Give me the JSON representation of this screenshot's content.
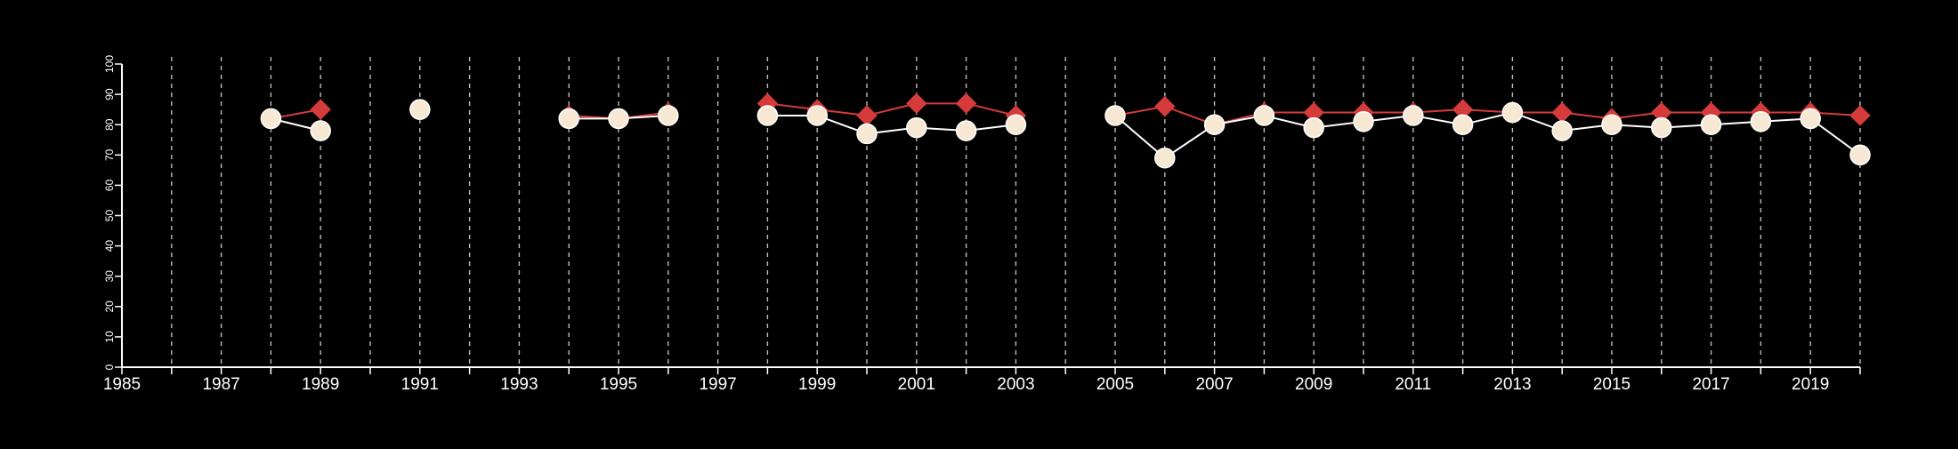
{
  "chart_data": {
    "type": "line",
    "title": "",
    "xlabel": "",
    "ylabel": "",
    "xlim": [
      1985,
      2020
    ],
    "ylim": [
      0,
      100
    ],
    "x_ticks": [
      1985,
      1986,
      1987,
      1988,
      1989,
      1990,
      1991,
      1992,
      1993,
      1994,
      1995,
      1996,
      1997,
      1998,
      1999,
      2000,
      2001,
      2002,
      2003,
      2004,
      2005,
      2006,
      2007,
      2008,
      2009,
      2010,
      2011,
      2012,
      2013,
      2014,
      2015,
      2016,
      2017,
      2018,
      2019,
      2020
    ],
    "x_tick_labels": [
      "1985",
      "",
      "1987",
      "",
      "1989",
      "",
      "1991",
      "",
      "1993",
      "",
      "1995",
      "",
      "1997",
      "",
      "1999",
      "",
      "2001",
      "",
      "2003",
      "",
      "2005",
      "",
      "2007",
      "",
      "2009",
      "",
      "2011",
      "",
      "2013",
      "",
      "2015",
      "",
      "2017",
      "",
      "2019",
      ""
    ],
    "y_ticks": [
      0,
      10,
      20,
      30,
      40,
      50,
      60,
      70,
      80,
      90,
      100
    ],
    "y_tick_labels": [
      "0",
      "10",
      "20",
      "30",
      "40",
      "50",
      "60",
      "70",
      "80",
      "90",
      "100"
    ],
    "grid": "vertical-dashed",
    "colors": {
      "background": "#000000",
      "axis": "#ffffff",
      "grid": "#bbbbbb",
      "series_red": "#d63b3b",
      "series_cream": "#f7e8d4",
      "series_cream_line": "#ffffff"
    },
    "series": [
      {
        "name": "",
        "marker": "diamond",
        "color": "#d63b3b",
        "segments": [
          [
            [
              1988,
              82
            ],
            [
              1989,
              85
            ]
          ],
          [
            [
              1991,
              85
            ]
          ],
          [
            [
              1994,
              83
            ],
            [
              1995,
              82
            ],
            [
              1996,
              84
            ]
          ],
          [
            [
              1998,
              87
            ],
            [
              1999,
              85
            ],
            [
              2000,
              83
            ],
            [
              2001,
              87
            ],
            [
              2002,
              87
            ],
            [
              2003,
              83
            ]
          ],
          [
            [
              2005,
              83
            ],
            [
              2006,
              86
            ],
            [
              2007,
              80
            ],
            [
              2008,
              84
            ],
            [
              2009,
              84
            ],
            [
              2010,
              84
            ],
            [
              2011,
              84
            ],
            [
              2012,
              85
            ],
            [
              2013,
              84
            ],
            [
              2014,
              84
            ],
            [
              2015,
              82
            ],
            [
              2016,
              84
            ],
            [
              2017,
              84
            ],
            [
              2018,
              84
            ],
            [
              2019,
              84
            ],
            [
              2020,
              83
            ]
          ]
        ]
      },
      {
        "name": "",
        "marker": "circle",
        "color": "#f7e8d4",
        "segments": [
          [
            [
              1988,
              82
            ],
            [
              1989,
              78
            ]
          ],
          [
            [
              1991,
              85
            ]
          ],
          [
            [
              1994,
              82
            ],
            [
              1995,
              82
            ],
            [
              1996,
              83
            ]
          ],
          [
            [
              1998,
              83
            ],
            [
              1999,
              83
            ],
            [
              2000,
              77
            ],
            [
              2001,
              79
            ],
            [
              2002,
              78
            ],
            [
              2003,
              80
            ]
          ],
          [
            [
              2005,
              83
            ],
            [
              2006,
              69
            ],
            [
              2007,
              80
            ],
            [
              2008,
              83
            ],
            [
              2009,
              79
            ],
            [
              2010,
              81
            ],
            [
              2011,
              83
            ],
            [
              2012,
              80
            ],
            [
              2013,
              84
            ],
            [
              2014,
              78
            ],
            [
              2015,
              80
            ],
            [
              2016,
              79
            ],
            [
              2017,
              80
            ],
            [
              2018,
              81
            ],
            [
              2019,
              82
            ],
            [
              2020,
              70
            ]
          ]
        ]
      }
    ]
  }
}
